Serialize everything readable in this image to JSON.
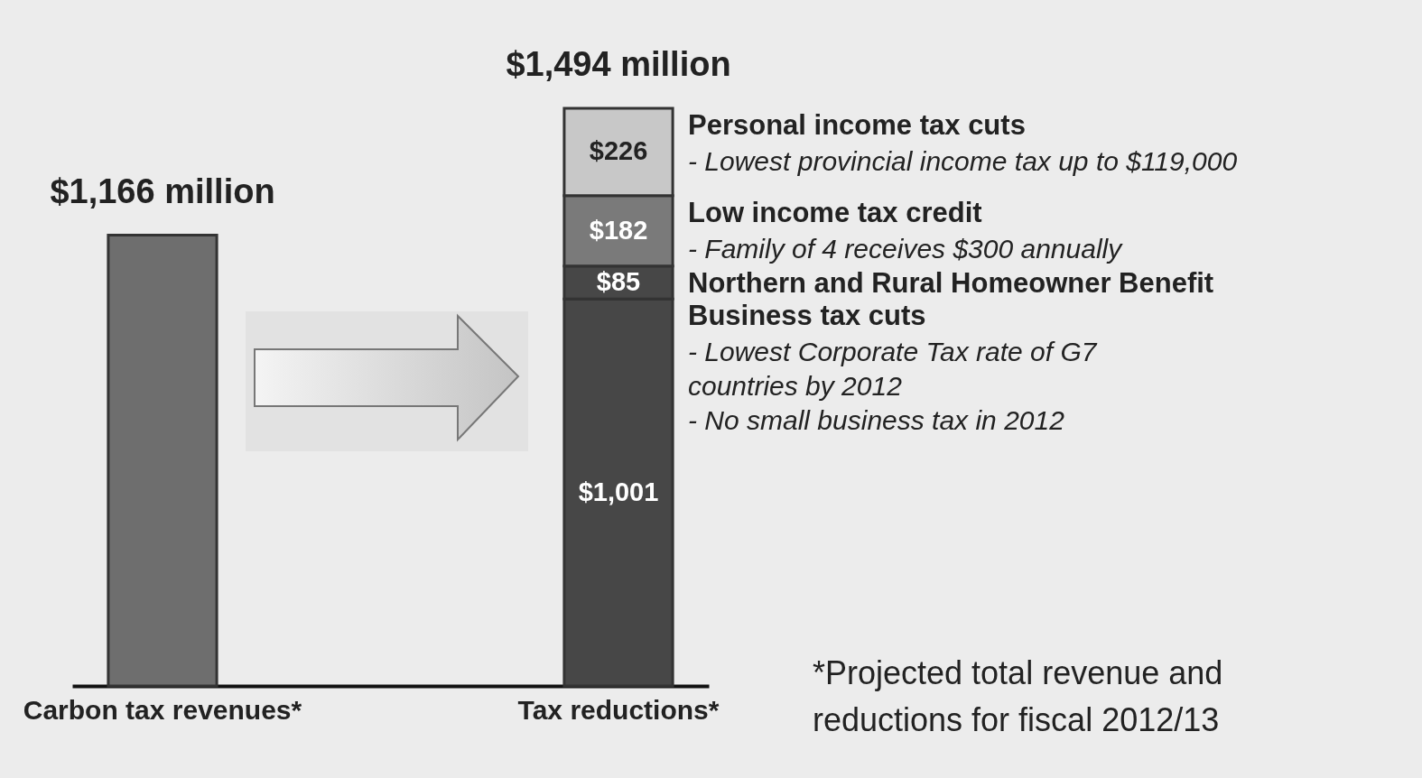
{
  "chart_data": {
    "type": "bar",
    "stacked": true,
    "categories": [
      "Carbon tax revenues*",
      "Tax reductions*"
    ],
    "series": [
      {
        "color": "#6e6e6e",
        "values": [
          1166,
          null
        ]
      },
      {
        "name": "Business tax cuts",
        "color": "#474747",
        "values": [
          null,
          1001
        ],
        "value_labels": [
          null,
          "$1,001"
        ]
      },
      {
        "name": "Northern and Rural Homeowner Benefit",
        "color": "#474747",
        "values": [
          null,
          85
        ],
        "value_labels": [
          null,
          "$85"
        ]
      },
      {
        "name": "Low income tax credit",
        "color": "#7a7a7a",
        "values": [
          null,
          182
        ],
        "value_labels": [
          null,
          "$182"
        ]
      },
      {
        "name": "Personal income tax  cuts",
        "color": "#c8c8c8",
        "values": [
          null,
          226
        ],
        "value_labels": [
          null,
          "$226"
        ]
      }
    ],
    "totals": [
      "$1,166 million",
      "$1,494 million"
    ],
    "annotations": [
      "- Lowest provincial income tax up to $119,000",
      "- Family of 4 receives $300 annually",
      "- Lowest Corporate Tax rate of G7\n  countries by 2012",
      "- No small business tax in 2012",
      "*Projected total revenue and\nreductions for fiscal 2012/13"
    ]
  }
}
